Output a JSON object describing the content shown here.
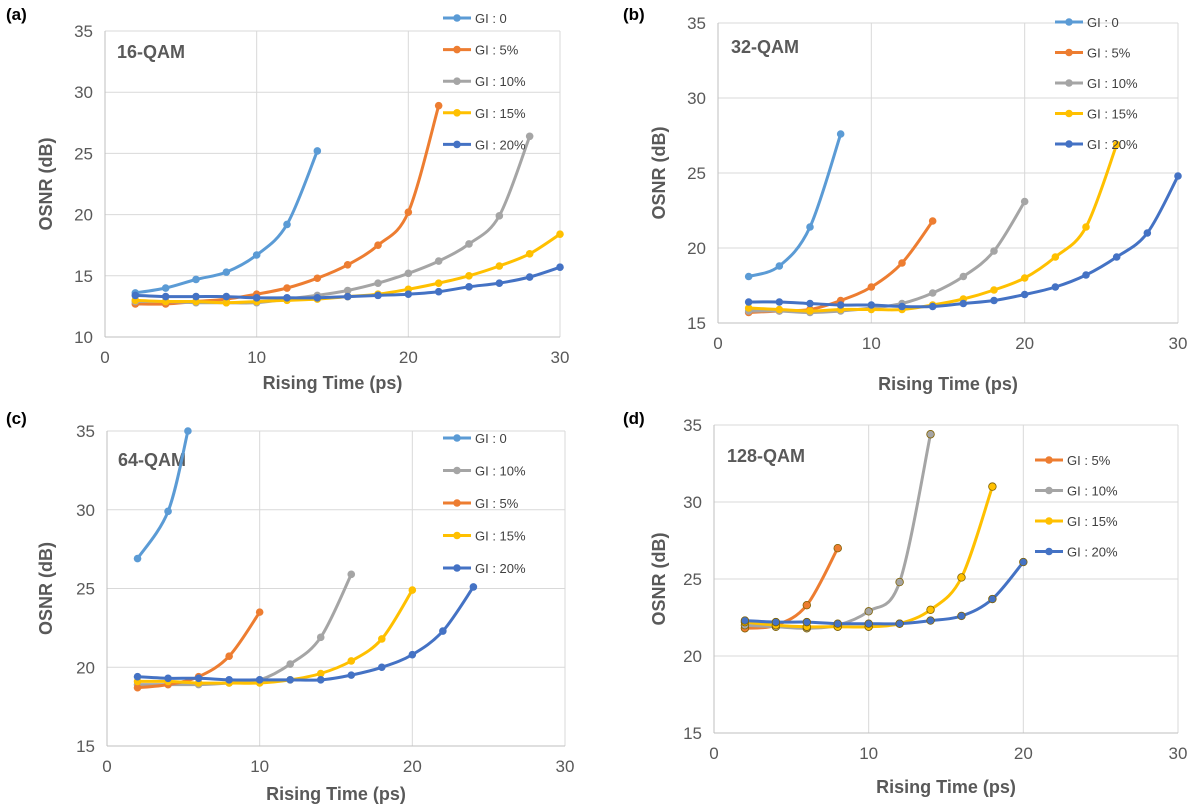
{
  "colors": {
    "gi0": "#5B9BD5",
    "gi5": "#ED7D31",
    "gi10": "#A5A5A5",
    "gi15": "#FFC000",
    "gi20": "#4472C4"
  },
  "chart_data": [
    {
      "type": "line",
      "panel_label": "(a)",
      "title": "16-QAM",
      "xlabel": "Rising Time (ps)",
      "ylabel": "OSNR (dB)",
      "xlim": [
        0,
        30
      ],
      "ylim": [
        10,
        35
      ],
      "xticks": [
        0,
        10,
        20,
        30
      ],
      "yticks": [
        10,
        15,
        20,
        25,
        30,
        35
      ],
      "grid": true,
      "legend_position": "top-right",
      "series": [
        {
          "name": "GI : 0",
          "color": "#5B9BD5",
          "x": [
            2,
            4,
            6,
            8,
            10,
            12,
            14
          ],
          "y": [
            13.6,
            14.0,
            14.7,
            15.3,
            16.7,
            19.2,
            25.2
          ]
        },
        {
          "name": "GI : 5%",
          "color": "#ED7D31",
          "x": [
            2,
            4,
            6,
            8,
            10,
            12,
            14,
            16,
            18,
            20,
            22
          ],
          "y": [
            12.7,
            12.7,
            12.9,
            13.1,
            13.5,
            14.0,
            14.8,
            15.9,
            17.5,
            20.2,
            28.9
          ]
        },
        {
          "name": "GI : 10%",
          "color": "#A5A5A5",
          "x": [
            2,
            4,
            6,
            8,
            10,
            12,
            14,
            16,
            18,
            20,
            22,
            24,
            26,
            28
          ],
          "y": [
            12.9,
            12.9,
            12.8,
            12.8,
            12.8,
            13.1,
            13.4,
            13.8,
            14.4,
            15.2,
            16.2,
            17.6,
            19.9,
            26.4
          ]
        },
        {
          "name": "GI : 15%",
          "color": "#FFC000",
          "x": [
            2,
            4,
            6,
            8,
            10,
            12,
            14,
            16,
            18,
            20,
            22,
            24,
            26,
            28,
            30
          ],
          "y": [
            13.0,
            12.9,
            12.9,
            12.8,
            12.9,
            13.0,
            13.1,
            13.3,
            13.5,
            13.9,
            14.4,
            15.0,
            15.8,
            16.8,
            18.4
          ]
        },
        {
          "name": "GI : 20%",
          "color": "#4472C4",
          "x": [
            2,
            4,
            6,
            8,
            10,
            12,
            14,
            16,
            18,
            20,
            22,
            24,
            26,
            28,
            30
          ],
          "y": [
            13.4,
            13.3,
            13.3,
            13.3,
            13.2,
            13.2,
            13.2,
            13.3,
            13.4,
            13.5,
            13.7,
            14.1,
            14.4,
            14.9,
            15.7
          ]
        }
      ]
    },
    {
      "type": "line",
      "panel_label": "(b)",
      "title": "32-QAM",
      "xlabel": "Rising Time (ps)",
      "ylabel": "OSNR (dB)",
      "xlim": [
        0,
        30
      ],
      "ylim": [
        15,
        35
      ],
      "xticks": [
        0,
        10,
        20,
        30
      ],
      "yticks": [
        15,
        20,
        25,
        30,
        35
      ],
      "grid": true,
      "legend_position": "top-right",
      "series": [
        {
          "name": "GI : 0",
          "color": "#5B9BD5",
          "x": [
            2,
            4,
            6,
            8
          ],
          "y": [
            18.1,
            18.8,
            21.4,
            27.6
          ]
        },
        {
          "name": "GI : 5%",
          "color": "#ED7D31",
          "x": [
            2,
            4,
            6,
            8,
            10,
            12,
            14
          ],
          "y": [
            15.7,
            15.8,
            15.9,
            16.5,
            17.4,
            19.0,
            21.8
          ]
        },
        {
          "name": "GI : 10%",
          "color": "#A5A5A5",
          "x": [
            2,
            4,
            6,
            8,
            10,
            12,
            14,
            16,
            18,
            20
          ],
          "y": [
            15.8,
            15.8,
            15.7,
            15.8,
            16.0,
            16.3,
            17.0,
            18.1,
            19.8,
            23.1
          ]
        },
        {
          "name": "GI : 15%",
          "color": "#FFC000",
          "x": [
            2,
            4,
            6,
            8,
            10,
            12,
            14,
            16,
            18,
            20,
            22,
            24,
            26
          ],
          "y": [
            16.0,
            15.9,
            15.8,
            15.9,
            15.9,
            15.9,
            16.2,
            16.6,
            17.2,
            18.0,
            19.4,
            21.4,
            26.9
          ]
        },
        {
          "name": "GI : 20%",
          "color": "#4472C4",
          "x": [
            2,
            4,
            6,
            8,
            10,
            12,
            14,
            16,
            18,
            20,
            22,
            24,
            26,
            28,
            30
          ],
          "y": [
            16.4,
            16.4,
            16.3,
            16.2,
            16.2,
            16.1,
            16.1,
            16.3,
            16.5,
            16.9,
            17.4,
            18.2,
            19.4,
            21.0,
            24.8
          ]
        }
      ]
    },
    {
      "type": "line",
      "panel_label": "(c)",
      "title": "64-QAM",
      "xlabel": "Rising Time (ps)",
      "ylabel": "OSNR (dB)",
      "xlim": [
        0,
        30
      ],
      "ylim": [
        15,
        35
      ],
      "xticks": [
        0,
        10,
        20,
        30
      ],
      "yticks": [
        15,
        20,
        25,
        30,
        35
      ],
      "grid": true,
      "legend_position": "top-right",
      "series": [
        {
          "name": "GI : 0",
          "color": "#5B9BD5",
          "x": [
            2,
            4,
            5.3
          ],
          "y": [
            26.9,
            29.9,
            35.0
          ]
        },
        {
          "name": "GI : 10%",
          "color": "#A5A5A5",
          "x": [
            2,
            4,
            6,
            8,
            10,
            12,
            14,
            16
          ],
          "y": [
            18.9,
            18.9,
            18.9,
            19.0,
            19.2,
            20.2,
            21.9,
            25.9
          ]
        },
        {
          "name": "GI : 5%",
          "color": "#ED7D31",
          "x": [
            2,
            4,
            6,
            8,
            10
          ],
          "y": [
            18.7,
            18.9,
            19.4,
            20.7,
            23.5
          ]
        },
        {
          "name": "GI : 15%",
          "color": "#FFC000",
          "x": [
            2,
            4,
            6,
            8,
            10,
            12,
            14,
            16,
            18,
            20
          ],
          "y": [
            19.1,
            19.1,
            19.0,
            19.0,
            19.0,
            19.2,
            19.6,
            20.4,
            21.8,
            24.9
          ]
        },
        {
          "name": "GI : 20%",
          "color": "#4472C4",
          "x": [
            2,
            4,
            6,
            8,
            10,
            12,
            14,
            16,
            18,
            20,
            22,
            24
          ],
          "y": [
            19.4,
            19.3,
            19.3,
            19.2,
            19.2,
            19.2,
            19.2,
            19.5,
            20.0,
            20.8,
            22.3,
            25.1
          ]
        }
      ]
    },
    {
      "type": "line",
      "panel_label": "(d)",
      "title": "128-QAM",
      "xlabel": "Rising Time (ps)",
      "ylabel": "OSNR (dB)",
      "xlim": [
        0,
        30
      ],
      "ylim": [
        15,
        35
      ],
      "xticks": [
        0,
        10,
        20,
        30
      ],
      "yticks": [
        15,
        20,
        25,
        30,
        35
      ],
      "grid": true,
      "legend_position": "top-right",
      "series": [
        {
          "name": "GI : 5%",
          "color": "#ED7D31",
          "x": [
            2,
            4,
            6,
            8
          ],
          "y": [
            21.8,
            22.0,
            23.3,
            27.0
          ]
        },
        {
          "name": "GI : 10%",
          "color": "#A5A5A5",
          "x": [
            2,
            4,
            6,
            8,
            10,
            12,
            14
          ],
          "y": [
            22.0,
            21.9,
            21.8,
            22.0,
            22.9,
            24.8,
            34.4
          ]
        },
        {
          "name": "GI : 15%",
          "color": "#FFC000",
          "x": [
            2,
            4,
            6,
            8,
            10,
            12,
            14,
            16,
            18
          ],
          "y": [
            22.2,
            22.0,
            21.9,
            21.9,
            21.9,
            22.1,
            23.0,
            25.1,
            31.0
          ]
        },
        {
          "name": "GI : 20%",
          "color": "#4472C4",
          "x": [
            2,
            4,
            6,
            8,
            10,
            12,
            14,
            16,
            18,
            20
          ],
          "y": [
            22.3,
            22.2,
            22.2,
            22.1,
            22.1,
            22.1,
            22.3,
            22.6,
            23.7,
            26.1
          ]
        }
      ]
    }
  ]
}
